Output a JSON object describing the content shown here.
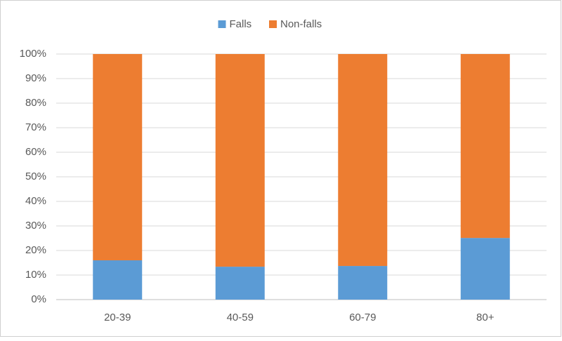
{
  "chart_data": {
    "type": "stacked_bar",
    "categories": [
      "20-39",
      "40-59",
      "60-79",
      "80+"
    ],
    "series": [
      {
        "name": "Falls",
        "color": "#5b9bd5",
        "values": [
          16,
          13.4,
          13.7,
          25.1
        ]
      },
      {
        "name": "Non-falls",
        "color": "#ed7d31",
        "values": [
          84,
          86.6,
          86.3,
          74.9
        ]
      }
    ],
    "ylim": [
      0,
      100
    ],
    "yticks": [
      {
        "value": 0,
        "label": "0%"
      },
      {
        "value": 10,
        "label": "10%"
      },
      {
        "value": 20,
        "label": "20%"
      },
      {
        "value": 30,
        "label": "30%"
      },
      {
        "value": 40,
        "label": "40%"
      },
      {
        "value": 50,
        "label": "50%"
      },
      {
        "value": 60,
        "label": "60%"
      },
      {
        "value": 70,
        "label": "70%"
      },
      {
        "value": 80,
        "label": "80%"
      },
      {
        "value": 90,
        "label": "90%"
      },
      {
        "value": 100,
        "label": "100%"
      }
    ],
    "grid": true,
    "legend": "top"
  }
}
